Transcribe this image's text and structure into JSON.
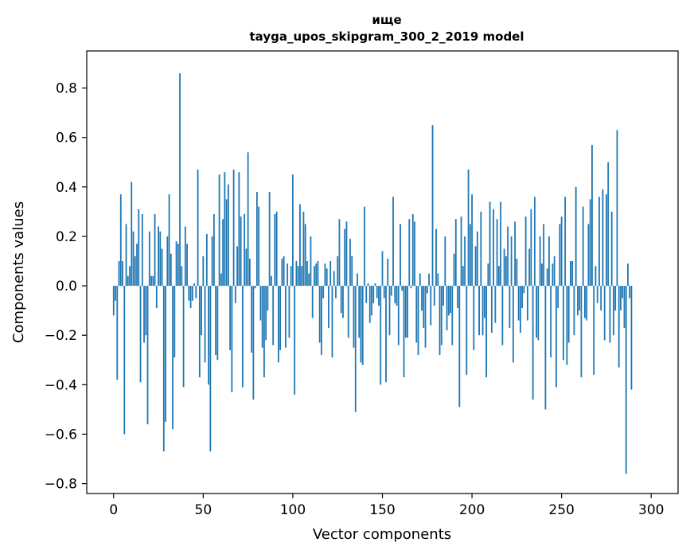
{
  "chart_data": {
    "type": "bar",
    "title_line1": "ище",
    "title_line2": "tayga_upos_skipgram_300_2_2019 model",
    "xlabel": "Vector components",
    "ylabel": "Components values",
    "xlim": [
      -15,
      315
    ],
    "ylim": [
      -0.84,
      0.95
    ],
    "xticks": [
      0,
      50,
      100,
      150,
      200,
      250,
      300
    ],
    "xtick_labels": [
      "0",
      "50",
      "100",
      "150",
      "200",
      "250",
      "300"
    ],
    "yticks": [
      -0.8,
      -0.6,
      -0.4,
      -0.2,
      0.0,
      0.2,
      0.4,
      0.6,
      0.8
    ],
    "ytick_labels": [
      "−0.8",
      "−0.6",
      "−0.4",
      "−0.2",
      "0.0",
      "0.2",
      "0.4",
      "0.6",
      "0.8"
    ],
    "bar_color": "#1f77b4",
    "grid": false,
    "values": [
      -0.12,
      -0.06,
      -0.38,
      0.1,
      0.37,
      0.1,
      -0.6,
      0.25,
      0.04,
      0.08,
      0.42,
      0.22,
      0.12,
      0.17,
      0.31,
      -0.39,
      0.29,
      -0.23,
      -0.2,
      -0.56,
      0.22,
      0.04,
      0.04,
      0.29,
      -0.09,
      0.24,
      0.22,
      0.15,
      -0.67,
      -0.55,
      0.2,
      0.37,
      0.13,
      -0.58,
      -0.29,
      0.18,
      0.17,
      0.86,
      0.08,
      -0.41,
      0.24,
      0.17,
      -0.06,
      -0.09,
      -0.06,
      0.01,
      -0.05,
      0.47,
      -0.37,
      -0.2,
      0.12,
      -0.31,
      0.21,
      -0.4,
      -0.67,
      0.2,
      0.29,
      -0.28,
      -0.3,
      0.45,
      0.05,
      0.27,
      0.46,
      0.35,
      0.41,
      -0.26,
      -0.43,
      0.47,
      -0.07,
      0.16,
      0.46,
      0.28,
      -0.41,
      0.29,
      0.15,
      0.54,
      0.11,
      -0.27,
      -0.46,
      -0.01,
      0.38,
      0.32,
      -0.14,
      -0.25,
      -0.37,
      -0.22,
      -0.1,
      0.38,
      0.04,
      -0.24,
      0.29,
      0.3,
      -0.31,
      -0.26,
      0.11,
      0.12,
      -0.25,
      0.09,
      -0.21,
      0.08,
      0.45,
      -0.44,
      0.1,
      0.08,
      0.33,
      0.08,
      0.3,
      0.25,
      0.1,
      0.05,
      0.2,
      -0.13,
      0.08,
      0.09,
      0.1,
      -0.23,
      -0.28,
      -0.05,
      0.09,
      0.07,
      -0.17,
      0.1,
      -0.29,
      0.06,
      -0.05,
      0.12,
      0.27,
      -0.11,
      -0.13,
      0.23,
      0.26,
      -0.21,
      0.19,
      0.12,
      -0.25,
      -0.51,
      0.05,
      -0.21,
      -0.31,
      -0.32,
      0.32,
      -0.07,
      0.01,
      -0.15,
      -0.12,
      -0.07,
      0.01,
      -0.05,
      -0.08,
      -0.4,
      0.14,
      -0.05,
      -0.39,
      0.11,
      -0.2,
      -0.04,
      0.36,
      -0.07,
      -0.08,
      -0.24,
      0.25,
      -0.02,
      -0.37,
      -0.21,
      -0.21,
      0.27,
      -0.01,
      0.29,
      0.26,
      -0.23,
      -0.28,
      0.05,
      -0.1,
      -0.17,
      -0.25,
      -0.03,
      0.05,
      -0.16,
      0.65,
      -0.08,
      0.23,
      0.05,
      -0.28,
      -0.24,
      -0.08,
      0.2,
      -0.18,
      -0.12,
      -0.11,
      -0.24,
      0.13,
      0.27,
      -0.09,
      -0.49,
      0.28,
      0.08,
      0.2,
      -0.36,
      0.47,
      0.25,
      0.37,
      -0.26,
      0.16,
      0.22,
      -0.2,
      0.3,
      -0.2,
      -0.13,
      -0.37,
      0.09,
      0.34,
      -0.19,
      0.31,
      -0.15,
      0.27,
      0.08,
      0.34,
      -0.24,
      0.15,
      0.12,
      0.24,
      -0.17,
      0.2,
      -0.31,
      0.26,
      0.11,
      -0.14,
      -0.19,
      -0.09,
      -0.03,
      0.28,
      -0.14,
      0.15,
      0.31,
      -0.46,
      0.36,
      -0.21,
      -0.22,
      0.2,
      0.09,
      0.25,
      -0.5,
      0.07,
      0.2,
      -0.29,
      0.09,
      0.12,
      -0.41,
      -0.09,
      0.25,
      0.28,
      -0.3,
      0.36,
      -0.32,
      -0.23,
      0.1,
      0.1,
      -0.2,
      0.4,
      -0.12,
      -0.1,
      -0.37,
      0.32,
      -0.13,
      -0.14,
      0.25,
      0.35,
      0.57,
      -0.36,
      0.08,
      -0.07,
      0.36,
      -0.1,
      0.39,
      -0.22,
      0.37,
      0.5,
      -0.23,
      0.3,
      -0.2,
      -0.1,
      0.63,
      -0.33,
      -0.1,
      -0.05,
      -0.17,
      -0.76,
      0.09,
      -0.05,
      -0.42
    ]
  }
}
